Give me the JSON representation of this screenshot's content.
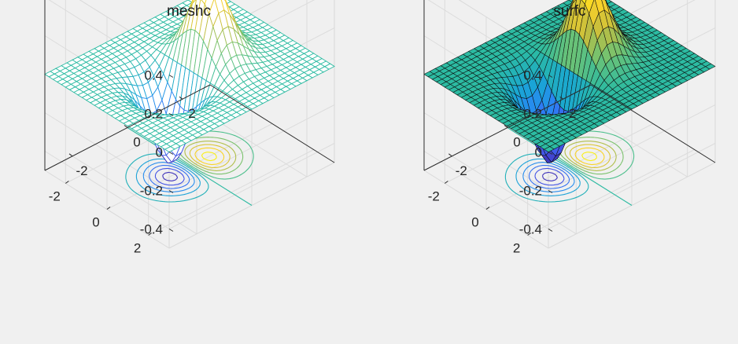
{
  "figure": {
    "background": "#f0f0f0"
  },
  "chart_data": [
    {
      "type": "mesh",
      "function": "x*exp(-x^2-y^2)",
      "title": "meshc",
      "x": {
        "range": [
          -3,
          3
        ],
        "ticks": [
          -2,
          0,
          2
        ],
        "tick_labels": [
          "-2",
          "0",
          "2"
        ]
      },
      "y": {
        "range": [
          -3,
          3
        ],
        "ticks": [
          -2,
          0,
          2
        ],
        "tick_labels": [
          "-2",
          "0",
          "2"
        ]
      },
      "z": {
        "range": [
          -0.5,
          0.5
        ],
        "ticks": [
          -0.4,
          -0.2,
          0,
          0.2,
          0.4
        ],
        "tick_labels": [
          "-0.4",
          "-0.2",
          "0",
          "0.2",
          "0.4"
        ]
      },
      "grid_n": 30,
      "style": "wireframe",
      "contour_levels": [
        -0.4,
        -0.33,
        -0.26,
        -0.19,
        -0.12,
        -0.05,
        0.05,
        0.12,
        0.19,
        0.26,
        0.33,
        0.4
      ],
      "colormap": [
        "#3e26a8",
        "#4355e8",
        "#2a84f6",
        "#19a6d4",
        "#2cbba2",
        "#71c372",
        "#c3bd3e",
        "#f9d12a",
        "#f9fb0e"
      ]
    },
    {
      "type": "surface",
      "function": "x*exp(-x^2-y^2)",
      "title": "surfc",
      "x": {
        "range": [
          -3,
          3
        ],
        "ticks": [
          -2,
          0,
          2
        ],
        "tick_labels": [
          "-2",
          "0",
          "2"
        ]
      },
      "y": {
        "range": [
          -3,
          3
        ],
        "ticks": [
          -2,
          0,
          2
        ],
        "tick_labels": [
          "-2",
          "0",
          "2"
        ]
      },
      "z": {
        "range": [
          -0.5,
          0.5
        ],
        "ticks": [
          -0.4,
          -0.2,
          0,
          0.2,
          0.4
        ],
        "tick_labels": [
          "-0.4",
          "-0.2",
          "0",
          "0.2",
          "0.4"
        ]
      },
      "grid_n": 30,
      "style": "filled-faces-black-edges",
      "contour_levels": [
        -0.4,
        -0.33,
        -0.26,
        -0.19,
        -0.12,
        -0.05,
        0.05,
        0.12,
        0.19,
        0.26,
        0.33,
        0.4
      ],
      "colormap": [
        "#3e26a8",
        "#4355e8",
        "#2a84f6",
        "#19a6d4",
        "#2cbba2",
        "#71c372",
        "#c3bd3e",
        "#f9d12a",
        "#f9fb0e"
      ]
    }
  ]
}
